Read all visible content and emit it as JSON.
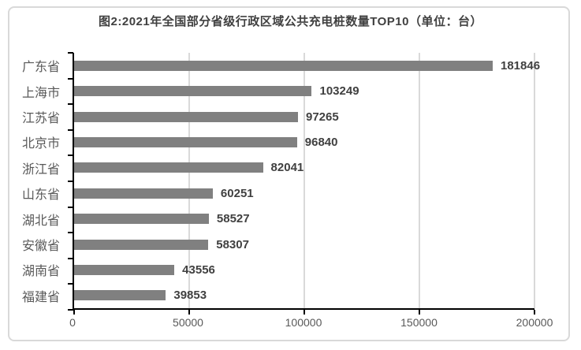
{
  "chart_data": {
    "type": "bar",
    "orientation": "horizontal",
    "title": "图2:2021年全国部分省级行政区域公共充电桩数量TOP10（单位：台）",
    "categories": [
      "广东省",
      "上海市",
      "江苏省",
      "北京市",
      "浙江省",
      "山东省",
      "湖北省",
      "安徽省",
      "湖南省",
      "福建省"
    ],
    "values": [
      181846,
      103249,
      97265,
      96840,
      82041,
      60251,
      58527,
      58307,
      43556,
      39853
    ],
    "value_labels": [
      "181846",
      "103249",
      "97265",
      "96840",
      "82041",
      "60251",
      "58527",
      "58307",
      "43556",
      "39853"
    ],
    "x_ticks": [
      0,
      50000,
      100000,
      150000,
      200000
    ],
    "x_tick_labels": [
      "0",
      "50000",
      "100000",
      "150000",
      "200000"
    ],
    "xlim": [
      0,
      200000
    ],
    "xlabel": "",
    "ylabel": "",
    "grid": "vertical-gridlines-on",
    "legend": "none",
    "colors": {
      "bar": "#808080",
      "title": "#404040",
      "value_label": "#404040",
      "category_label": "#595959",
      "axis_tick_label": "#595959",
      "gridline": "#d9d9d9",
      "axis_line": "#000000",
      "outer_border": "#d9d9d9",
      "background": "#ffffff"
    }
  }
}
